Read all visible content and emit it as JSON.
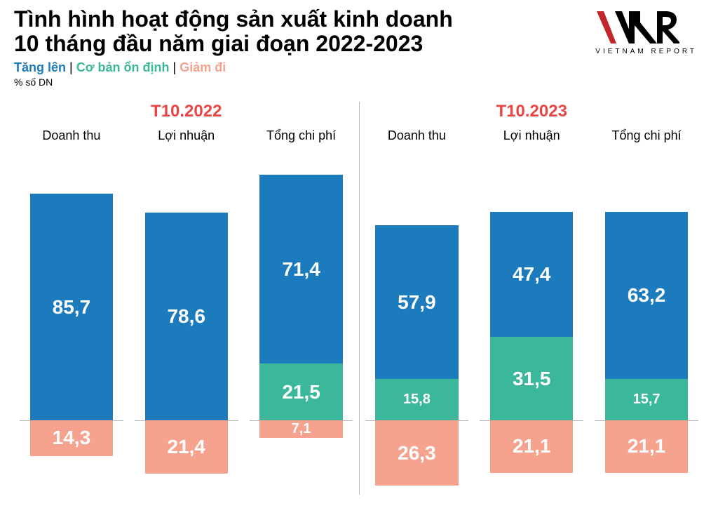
{
  "title_line1": "Tình hình hoạt động sản xuất kinh doanh",
  "title_line2": "10 tháng đầu năm giai đoạn 2022-2023",
  "legend": {
    "increase": "Tăng lên",
    "stable": "Cơ bản ổn định",
    "decrease": "Giảm đi"
  },
  "subtitle": "% số DN",
  "logo_caption": "VIETNAM REPORT",
  "chart": {
    "type": "diverging-stacked-bar",
    "colors": {
      "increase": "#1c7bbd",
      "stable": "#3bb89b",
      "decrease": "#f5a38f",
      "panel_title": "#e84545",
      "axis": "#bbbbbb",
      "background": "#ffffff",
      "text_on_bar": "#ffffff"
    },
    "typography": {
      "title_fontsize": 32,
      "title_weight": 900,
      "panel_title_fontsize": 24,
      "panel_title_weight": 700,
      "group_label_fontsize": 18,
      "value_fontsize": 28,
      "value_fontsize_small": 20,
      "legend_fontsize": 18
    },
    "layout": {
      "baseline_pct_from_top": 78,
      "max_up_value": 100,
      "max_down_value": 30,
      "bar_width_pct": 80
    },
    "panels": [
      {
        "title": "T10.2022",
        "groups": [
          {
            "label": "Doanh thu",
            "increase": 85.7,
            "stable": 0.0,
            "decrease": 14.3,
            "display": {
              "increase": "85,7",
              "stable": "",
              "decrease": "14,3"
            }
          },
          {
            "label": "Lợi nhuận",
            "increase": 78.6,
            "stable": 0.0,
            "decrease": 21.4,
            "display": {
              "increase": "78,6",
              "stable": "",
              "decrease": "21,4"
            }
          },
          {
            "label": "Tổng chi phí",
            "increase": 71.4,
            "stable": 21.5,
            "decrease": 7.1,
            "display": {
              "increase": "71,4",
              "stable": "21,5",
              "decrease": "7,1"
            }
          }
        ]
      },
      {
        "title": "T10.2023",
        "groups": [
          {
            "label": "Doanh thu",
            "increase": 57.9,
            "stable": 15.8,
            "decrease": 26.3,
            "display": {
              "increase": "57,9",
              "stable": "15,8",
              "decrease": "26,3"
            }
          },
          {
            "label": "Lợi nhuận",
            "increase": 47.4,
            "stable": 31.5,
            "decrease": 21.1,
            "display": {
              "increase": "47,4",
              "stable": "31,5",
              "decrease": "21,1"
            }
          },
          {
            "label": "Tổng chi phí",
            "increase": 63.2,
            "stable": 15.7,
            "decrease": 21.1,
            "display": {
              "increase": "63,2",
              "stable": "15,7",
              "decrease": "21,1"
            }
          }
        ]
      }
    ]
  }
}
